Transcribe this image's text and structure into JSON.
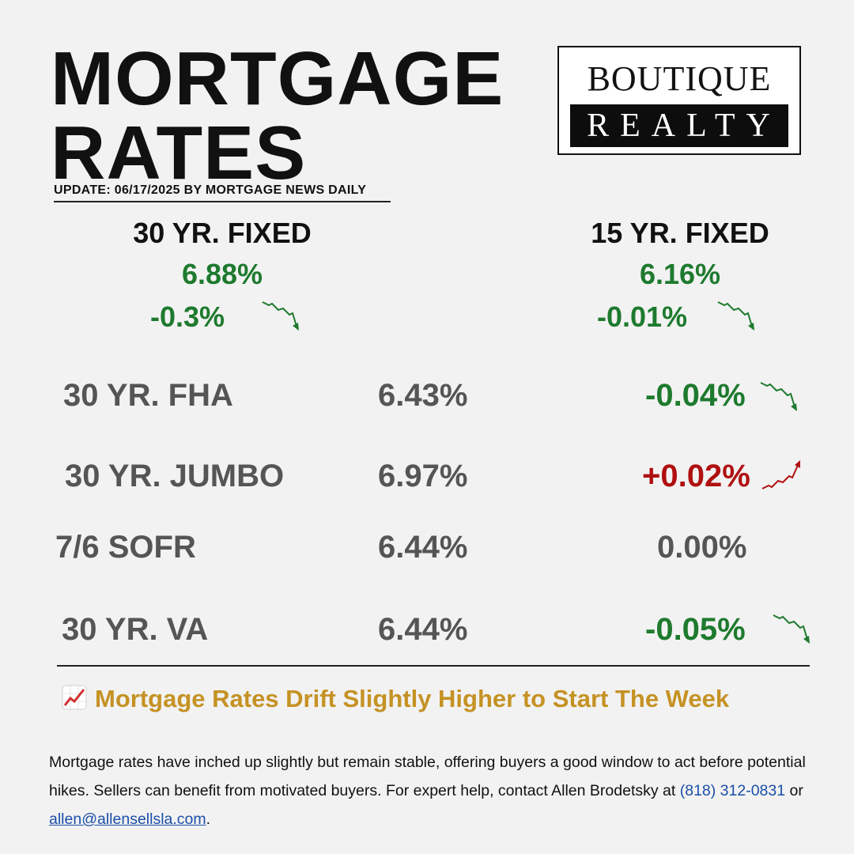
{
  "title": {
    "line1": "MORTGAGE",
    "line2": "RATES"
  },
  "update": "UPDATE: 06/17/2025 BY MORTGAGE NEWS DAILY",
  "logo": {
    "top": "BOUTIQUE",
    "bottom": "REALTY"
  },
  "featured": [
    {
      "label": "30 YR. FIXED",
      "rate": "6.88%",
      "change": "-0.3%",
      "trend": "down"
    },
    {
      "label": "15 YR. FIXED",
      "rate": "6.16%",
      "change": "-0.01%",
      "trend": "down"
    }
  ],
  "rows": [
    {
      "label": "30 YR. FHA",
      "rate": "6.43%",
      "change": "-0.04%",
      "trend": "down"
    },
    {
      "label": "30 YR. JUMBO",
      "rate": "6.97%",
      "change": "+0.02%",
      "trend": "up"
    },
    {
      "label": "7/6 SOFR",
      "rate": "6.44%",
      "change": "0.00%",
      "trend": "flat"
    },
    {
      "label": "30 YR. VA",
      "rate": "6.44%",
      "change": "-0.05%",
      "trend": "down"
    }
  ],
  "headline": {
    "icon": "chart-increasing-icon",
    "text": "Mortgage Rates Drift Slightly Higher to Start The Week"
  },
  "body": {
    "text1": "Mortgage rates have inched up slightly but remain stable, offering buyers a good window to act before potential hikes. Sellers can benefit from motivated buyers. For expert help, contact Allen Brodetsky at ",
    "phone": "(818) 312-0831",
    "or": " or ",
    "email": "allen@allensellsla.com",
    "end": "."
  },
  "colors": {
    "down": "#1e7a2e",
    "up": "#b01010",
    "flat": "#555555",
    "headline": "#c59224",
    "link": "#1b4fa8"
  }
}
